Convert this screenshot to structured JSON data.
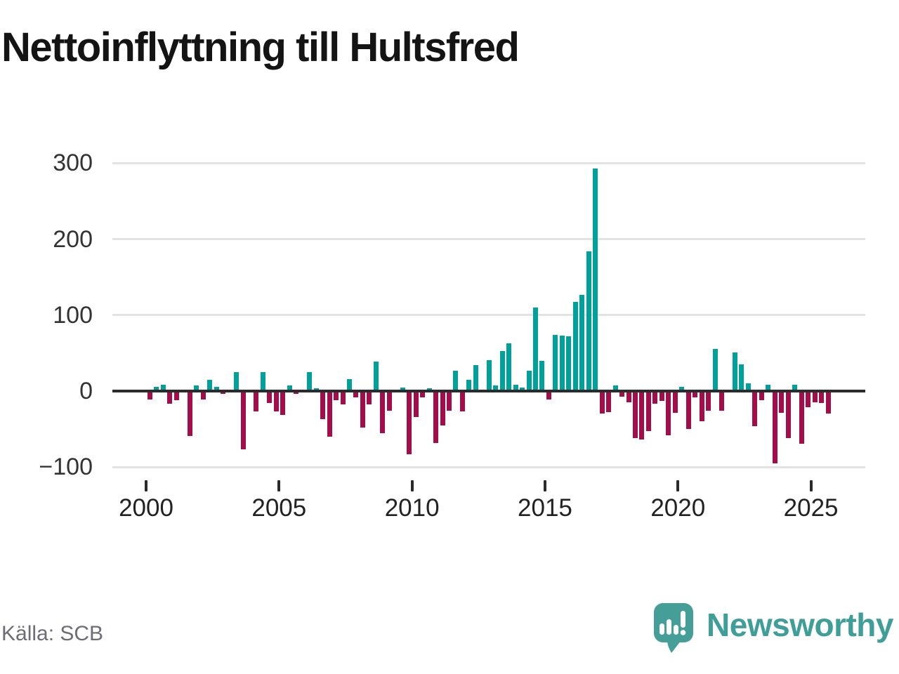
{
  "title": "Nettoinflyttning till Hultsfred",
  "source": "Källa: SCB",
  "brand": {
    "name": "Newsworthy",
    "icon": "newsworthy-speech-bubble-chart-logo"
  },
  "colors": {
    "positive_bar": "#00a09b",
    "negative_bar": "#a30d49",
    "gridline": "#e3e3e3",
    "zero_axis": "#2b2b2b",
    "title_text": "#141414",
    "axis_text": "#333333",
    "source_text": "#6d6d76",
    "brand_teal": "#3f9e98"
  },
  "chart_data": {
    "type": "bar",
    "title": "Nettoinflyttning till Hultsfred",
    "xlabel": "",
    "ylabel": "",
    "x_unit": "quarter",
    "x_start": "2000 Q1",
    "x_end": "2025 Q3",
    "ylim": [
      -100,
      300
    ],
    "grid": "horizontal",
    "legend": "none",
    "y_ticks": [
      300,
      200,
      100,
      0,
      -100
    ],
    "x_ticks": [
      2000,
      2005,
      2010,
      2015,
      2020,
      2025
    ],
    "series_by_year": [
      {
        "year": 2000,
        "values": [
          -11,
          6,
          8,
          -17
        ]
      },
      {
        "year": 2001,
        "values": [
          -12,
          0,
          -59,
          7
        ]
      },
      {
        "year": 2002,
        "values": [
          -11,
          15,
          6,
          -4
        ]
      },
      {
        "year": 2003,
        "values": [
          0,
          25,
          -77,
          0
        ]
      },
      {
        "year": 2004,
        "values": [
          -27,
          25,
          -16,
          -27
        ]
      },
      {
        "year": 2005,
        "values": [
          -31,
          7,
          -4,
          0
        ]
      },
      {
        "year": 2006,
        "values": [
          25,
          4,
          -37,
          -60
        ]
      },
      {
        "year": 2007,
        "values": [
          -12,
          -18,
          16,
          -8
        ]
      },
      {
        "year": 2008,
        "values": [
          -48,
          -18,
          39,
          -55
        ]
      },
      {
        "year": 2009,
        "values": [
          -26,
          0,
          5,
          -83
        ]
      },
      {
        "year": 2010,
        "values": [
          -34,
          -8,
          4,
          -68
        ]
      },
      {
        "year": 2011,
        "values": [
          -45,
          -26,
          27,
          -27
        ]
      },
      {
        "year": 2012,
        "values": [
          15,
          34,
          0,
          41
        ]
      },
      {
        "year": 2013,
        "values": [
          7,
          53,
          63,
          8
        ]
      },
      {
        "year": 2014,
        "values": [
          5,
          27,
          110,
          40
        ]
      },
      {
        "year": 2015,
        "values": [
          -11,
          74,
          73,
          72
        ]
      },
      {
        "year": 2016,
        "values": [
          117,
          127,
          184,
          293
        ]
      },
      {
        "year": 2017,
        "values": [
          -30,
          -28,
          7,
          -7
        ]
      },
      {
        "year": 2018,
        "values": [
          -15,
          -62,
          -64,
          -53
        ]
      },
      {
        "year": 2019,
        "values": [
          -17,
          -13,
          -58,
          -29
        ]
      },
      {
        "year": 2020,
        "values": [
          6,
          -50,
          -8,
          -40
        ]
      },
      {
        "year": 2021,
        "values": [
          -26,
          55,
          -26,
          2
        ]
      },
      {
        "year": 2022,
        "values": [
          51,
          35,
          10,
          -46
        ]
      },
      {
        "year": 2023,
        "values": [
          -12,
          8,
          -95,
          -29
        ]
      },
      {
        "year": 2024,
        "values": [
          -62,
          8,
          -69,
          -21
        ]
      },
      {
        "year": 2025,
        "values": [
          -15,
          -16,
          -30
        ]
      }
    ]
  }
}
